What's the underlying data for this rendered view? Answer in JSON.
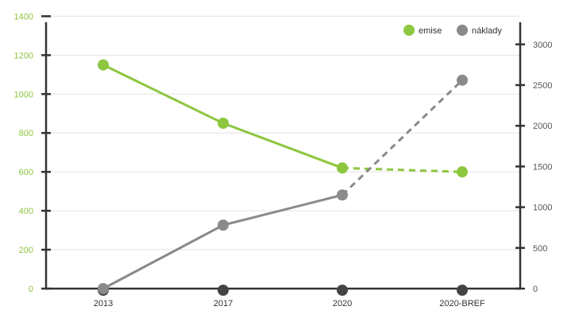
{
  "chart_data": {
    "type": "line",
    "categories": [
      "2013",
      "2017",
      "2020",
      "2020-BREF"
    ],
    "series": [
      {
        "name": "emise",
        "axis": "left",
        "color": "#8dc63f",
        "values": [
          1150,
          850,
          620,
          600
        ],
        "dashed_from_index": 2
      },
      {
        "name": "náklady",
        "axis": "right",
        "color": "#8a8a8a",
        "values": [
          0,
          780,
          1150,
          2560
        ],
        "dashed_from_index": 2
      }
    ],
    "y_left": {
      "min": 0,
      "max": 1500,
      "ticks": [
        0,
        200,
        400,
        600,
        800,
        1000,
        1200,
        1400
      ]
    },
    "y_right": {
      "min": 0,
      "max": 3000,
      "ticks": [
        0,
        500,
        1000,
        1500,
        2000,
        2500,
        3000
      ]
    },
    "grid": true,
    "legend_position": "top-right",
    "axis_color": "#333333",
    "grid_color": "#e3e3e3",
    "x_marker_color": "#444444"
  }
}
